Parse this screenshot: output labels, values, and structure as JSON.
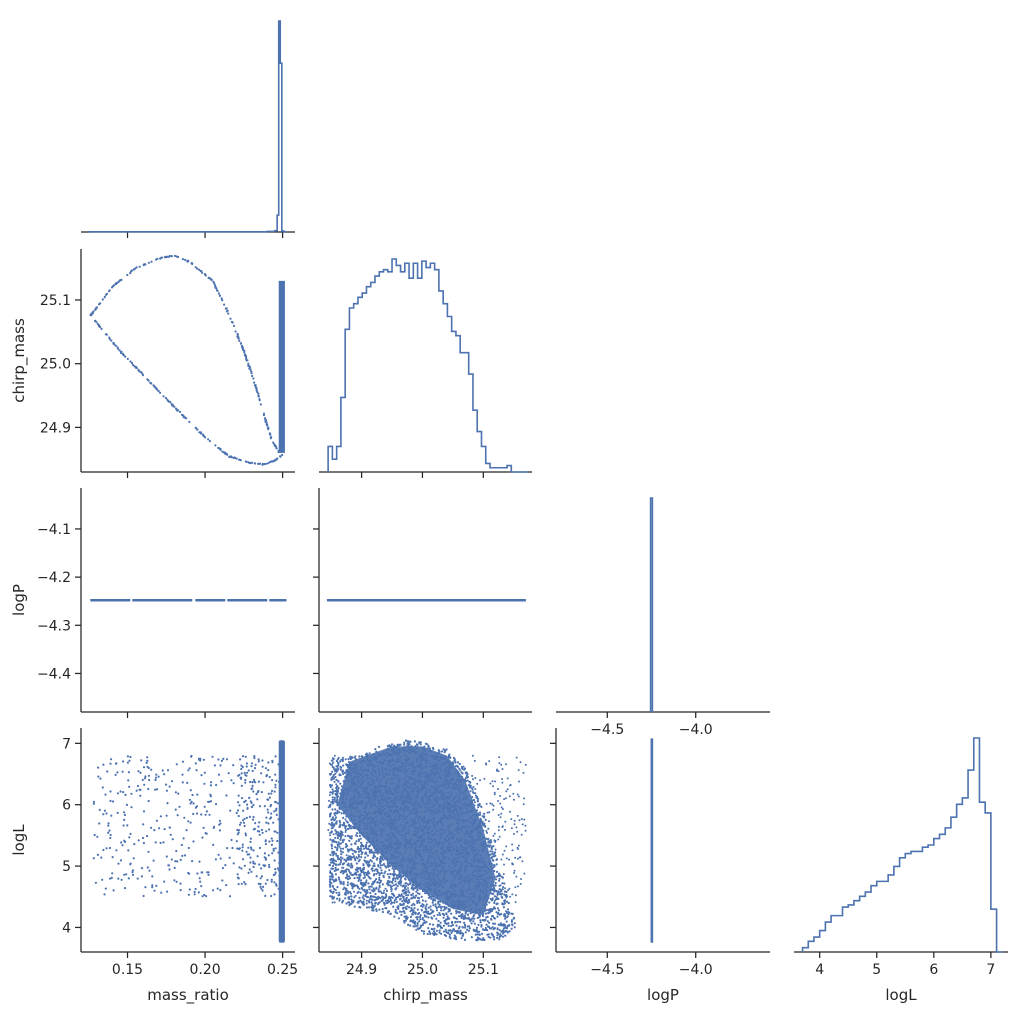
{
  "chart_data": {
    "type": "corner",
    "variables": [
      "mass_ratio",
      "chirp_mass",
      "logP",
      "logL"
    ],
    "color": "#4c72b0",
    "axis_color": "#262626",
    "axes": {
      "mass_ratio": {
        "range": [
          0.12,
          0.258
        ],
        "ticks": [
          0.15,
          0.2,
          0.25
        ],
        "tick_labels": [
          "0.15",
          "0.20",
          "0.25"
        ],
        "label": "mass_ratio"
      },
      "chirp_mass": {
        "range": [
          24.83,
          25.18
        ],
        "ticks": [
          24.9,
          25.0,
          25.1
        ],
        "tick_labels": [
          "24.9",
          "25.0",
          "25.1"
        ],
        "label": "chirp_mass"
      },
      "logP": {
        "range": [
          -4.48,
          -4.015
        ],
        "ticks": [
          -4.4,
          -4.3,
          -4.2,
          -4.1
        ],
        "tick_labels": [
          "−4.4",
          "−4.3",
          "−4.2",
          "−4.1"
        ],
        "label": "logP"
      },
      "logL": {
        "range": [
          3.6,
          7.25
        ],
        "ticks": [
          4,
          5,
          6,
          7
        ],
        "tick_labels": [
          "4",
          "5",
          "6",
          "7"
        ],
        "label": "logL"
      }
    },
    "diag_x_axes": {
      "logP": {
        "range": [
          -4.79,
          -3.58
        ],
        "ticks": [
          -4.5,
          -4.0
        ],
        "tick_labels": [
          "−4.5",
          "−4.0"
        ]
      },
      "logL": {
        "range": [
          3.55,
          7.3
        ],
        "ticks": [
          4,
          5,
          6,
          7
        ],
        "tick_labels": [
          "4",
          "5",
          "6",
          "7"
        ]
      }
    },
    "histograms": {
      "mass_ratio": {
        "edges": [
          0.125,
          0.24,
          0.245,
          0.2465,
          0.2475,
          0.2485,
          0.2495,
          0.2505,
          0.2515,
          0.2525
        ],
        "counts": [
          1,
          3,
          6,
          80,
          1000,
          800,
          5,
          2,
          0
        ]
      },
      "chirp_mass": {
        "edges": [
          24.845,
          24.852,
          24.859,
          24.866,
          24.873,
          24.88,
          24.887,
          24.894,
          24.901,
          24.908,
          24.915,
          24.922,
          24.929,
          24.936,
          24.943,
          24.95,
          24.957,
          24.964,
          24.971,
          24.978,
          24.985,
          24.992,
          24.999,
          25.006,
          25.013,
          25.02,
          25.027,
          25.034,
          25.041,
          25.048,
          25.055,
          25.062,
          25.069,
          25.076,
          25.083,
          25.09,
          25.097,
          25.104,
          25.111,
          25.118,
          25.125,
          25.132,
          25.139,
          25.146,
          25.153,
          25.16,
          25.167,
          25.174
        ],
        "counts": [
          12,
          6,
          12,
          35,
          67,
          77,
          79,
          82,
          84,
          87,
          89,
          92,
          94,
          95,
          94,
          100,
          97,
          94,
          98,
          91,
          98,
          91,
          99,
          96,
          98,
          95,
          85,
          79,
          73,
          66,
          64,
          56,
          56,
          46,
          29,
          19,
          12,
          4,
          2,
          2,
          2,
          2,
          3,
          0,
          0,
          0,
          0
        ]
      },
      "logP": {
        "edges": [
          -4.255,
          -4.245
        ],
        "counts": [
          1
        ]
      },
      "logL": {
        "edges": [
          3.7,
          3.8,
          3.9,
          4.0,
          4.1,
          4.2,
          4.3,
          4.4,
          4.5,
          4.6,
          4.7,
          4.8,
          4.9,
          5.0,
          5.1,
          5.2,
          5.3,
          5.4,
          5.5,
          5.6,
          5.7,
          5.8,
          5.9,
          6.0,
          6.1,
          6.2,
          6.3,
          6.4,
          6.5,
          6.6,
          6.7,
          6.8,
          6.9,
          7.0,
          7.1,
          7.2
        ],
        "counts": [
          2,
          5,
          7,
          10,
          14,
          17,
          17,
          21,
          22,
          24,
          26,
          28,
          31,
          33,
          33,
          36,
          40,
          44,
          46,
          47,
          47,
          49,
          50,
          53,
          55,
          58,
          63,
          69,
          72,
          85,
          100,
          70,
          65,
          20,
          0
        ]
      }
    },
    "scatter_features": {
      "mass_ratio_chirp_mass_upper_curve": [
        [
          0.126,
          25.075
        ],
        [
          0.14,
          25.12
        ],
        [
          0.155,
          25.15
        ],
        [
          0.17,
          25.165
        ],
        [
          0.18,
          25.17
        ],
        [
          0.19,
          25.16
        ],
        [
          0.205,
          25.13
        ],
        [
          0.215,
          25.08
        ],
        [
          0.225,
          25.02
        ],
        [
          0.232,
          24.97
        ],
        [
          0.238,
          24.92
        ],
        [
          0.243,
          24.88
        ],
        [
          0.248,
          24.86
        ],
        [
          0.25,
          24.855
        ]
      ],
      "mass_ratio_chirp_mass_lower_curve": [
        [
          0.128,
          25.07
        ],
        [
          0.145,
          25.02
        ],
        [
          0.165,
          24.97
        ],
        [
          0.185,
          24.92
        ],
        [
          0.2,
          24.885
        ],
        [
          0.215,
          24.855
        ],
        [
          0.228,
          24.845
        ],
        [
          0.238,
          24.842
        ],
        [
          0.245,
          24.848
        ],
        [
          0.249,
          24.855
        ]
      ],
      "mass_ratio_chirp_mass_cluster": {
        "x": [
          0.2475,
          0.2515
        ],
        "y": [
          24.86,
          25.13
        ]
      },
      "logP_constant": -4.248,
      "mass_ratio_logL_scatter_region": {
        "x": [
          0.128,
          0.248
        ],
        "y": [
          4.5,
          6.8
        ]
      },
      "mass_ratio_logL_cluster": {
        "x": [
          0.2475,
          0.2515
        ],
        "y": [
          3.75,
          7.05
        ]
      },
      "chirp_mass_logL_dense_region": [
        [
          24.848,
          4.5
        ],
        [
          24.848,
          6.75
        ],
        [
          24.9,
          6.8
        ],
        [
          24.93,
          6.95
        ],
        [
          24.97,
          7.05
        ],
        [
          25.0,
          7.02
        ],
        [
          25.04,
          6.9
        ],
        [
          25.07,
          6.6
        ],
        [
          25.1,
          5.9
        ],
        [
          25.13,
          4.9
        ],
        [
          25.155,
          4.0
        ],
        [
          25.13,
          3.8
        ],
        [
          25.07,
          3.78
        ],
        [
          25.0,
          3.9
        ],
        [
          24.95,
          4.2
        ],
        [
          24.9,
          4.3
        ],
        [
          24.86,
          4.4
        ]
      ],
      "chirp_mass_logL_sparse_region": {
        "x": [
          24.845,
          25.17
        ],
        "y": [
          4.4,
          6.8
        ]
      },
      "logP_logL_line": {
        "x": -4.248,
        "y": [
          3.75,
          7.08
        ]
      }
    }
  }
}
